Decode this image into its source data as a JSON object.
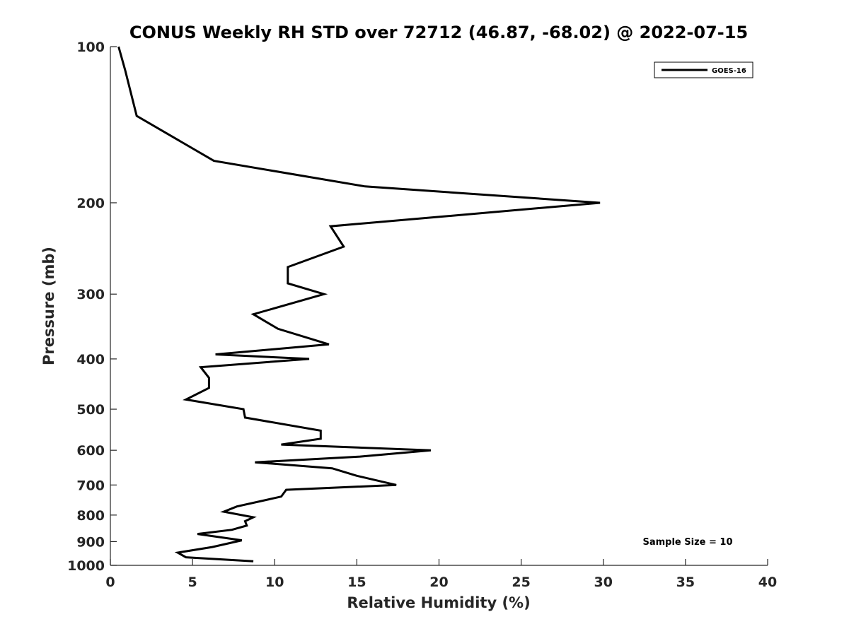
{
  "chart_data": {
    "type": "line",
    "title": "CONUS Weekly RH STD over 72712 (46.87, -68.02) @ 2022-07-15",
    "xlabel": "Relative Humidity (%)",
    "ylabel": "Pressure (mb)",
    "xlim": [
      0,
      40
    ],
    "ylim": [
      100,
      1000
    ],
    "y_scale": "log",
    "y_reversed": true,
    "xticks": [
      0,
      5,
      10,
      15,
      20,
      25,
      30,
      35,
      40
    ],
    "yticks": [
      100,
      200,
      300,
      400,
      500,
      600,
      700,
      800,
      900,
      1000
    ],
    "grid": false,
    "legend": {
      "position": "top-right",
      "entries": [
        "GOES-16"
      ]
    },
    "annotation": "Sample Size = 10",
    "series": [
      {
        "name": "GOES-16",
        "color": "#000000",
        "x": [
          0.5,
          0.9,
          1.6,
          6.3,
          15.5,
          29.8,
          13.4,
          14.2,
          10.8,
          10.8,
          13.0,
          8.7,
          10.2,
          13.3,
          6.4,
          12.1,
          5.5,
          6.0,
          6.0,
          4.6,
          8.1,
          8.2,
          12.8,
          12.8,
          10.4,
          19.5,
          15.2,
          8.8,
          13.5,
          15.0,
          17.4,
          10.7,
          10.4,
          7.7,
          6.9,
          8.7,
          8.2,
          8.3,
          7.4,
          5.3,
          8.0,
          6.2,
          4.1,
          4.6,
          8.7
        ],
        "y": [
          100,
          111,
          136,
          166,
          186,
          200,
          222,
          243,
          266,
          286,
          300,
          328,
          350,
          375,
          392,
          400,
          415,
          435,
          455,
          479,
          500,
          519,
          550,
          570,
          585,
          600,
          617,
          633,
          650,
          672,
          700,
          715,
          737,
          770,
          788,
          808,
          822,
          838,
          854,
          870,
          895,
          922,
          945,
          965,
          982
        ]
      }
    ]
  }
}
